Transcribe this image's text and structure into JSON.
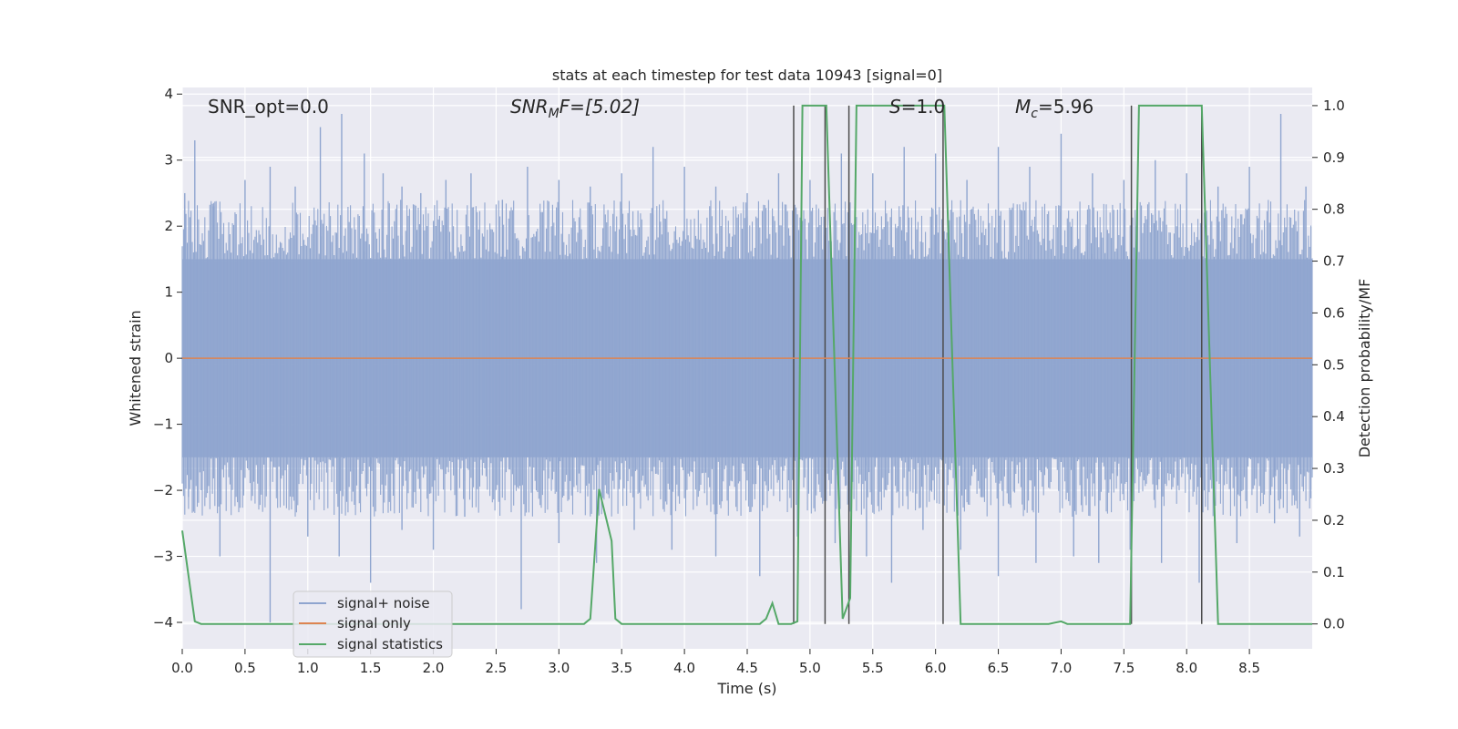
{
  "chart_data": {
    "type": "line",
    "title": "stats at each timestep for test data 10943 [signal=0]",
    "xlabel": "Time (s)",
    "ylabel": "Whitened strain",
    "ylabel_right": "Detection probability/MF",
    "xlim": [
      0.0,
      9.0
    ],
    "ylim": [
      -4.4,
      4.1
    ],
    "ylim_right": [
      -0.048,
      1.035
    ],
    "x_ticks": [
      "0.0",
      "0.5",
      "1.0",
      "1.5",
      "2.0",
      "2.5",
      "3.0",
      "3.5",
      "4.0",
      "4.5",
      "5.0",
      "5.5",
      "6.0",
      "6.5",
      "7.0",
      "7.5",
      "8.0",
      "8.5"
    ],
    "y_ticks": [
      "4",
      "3",
      "2",
      "1",
      "0",
      "−1",
      "−2",
      "−3",
      "−4"
    ],
    "y_ticks_right": [
      "1.0",
      "0.9",
      "0.8",
      "0.7",
      "0.6",
      "0.5",
      "0.4",
      "0.3",
      "0.2",
      "0.1",
      "0.0"
    ],
    "grid": true,
    "legend_position": "lower-left",
    "annotations": {
      "snr_opt": "SNR_opt=0.0",
      "snr_mf_main": "SNR",
      "snr_mf_sub": "M",
      "snr_mf_rest": "F=[5.02]",
      "s_main": "S",
      "s_rest": "=1.0",
      "mc_main": "M",
      "mc_sub": "c",
      "mc_rest": "=5.96"
    },
    "series": [
      {
        "name": "signal+ noise",
        "color": "#8fa5cf",
        "description": "whitened strain noise trace, approximately uniform band within ±1.5 with spikes up to about ±3.8",
        "band": [
          -1.5,
          1.5
        ],
        "peaks_up": [
          [
            0.02,
            2.5
          ],
          [
            0.1,
            3.3
          ],
          [
            0.25,
            2.3
          ],
          [
            0.5,
            2.7
          ],
          [
            0.7,
            2.9
          ],
          [
            0.9,
            2.6
          ],
          [
            1.1,
            3.5
          ],
          [
            1.27,
            3.7
          ],
          [
            1.45,
            3.1
          ],
          [
            1.6,
            2.8
          ],
          [
            1.75,
            2.6
          ],
          [
            1.9,
            2.5
          ],
          [
            2.1,
            2.7
          ],
          [
            2.3,
            2.8
          ],
          [
            2.55,
            2.4
          ],
          [
            2.75,
            2.9
          ],
          [
            3.0,
            2.7
          ],
          [
            3.25,
            2.6
          ],
          [
            3.5,
            2.8
          ],
          [
            3.75,
            3.2
          ],
          [
            4.0,
            2.9
          ],
          [
            4.25,
            2.6
          ],
          [
            4.5,
            2.5
          ],
          [
            4.75,
            2.8
          ],
          [
            5.0,
            2.7
          ],
          [
            5.25,
            3.1
          ],
          [
            5.5,
            2.8
          ],
          [
            5.75,
            3.2
          ],
          [
            6.0,
            3.1
          ],
          [
            6.25,
            2.7
          ],
          [
            6.5,
            3.2
          ],
          [
            6.75,
            2.9
          ],
          [
            7.0,
            3.4
          ],
          [
            7.25,
            2.8
          ],
          [
            7.5,
            2.7
          ],
          [
            7.75,
            3.0
          ],
          [
            8.0,
            2.8
          ],
          [
            8.25,
            2.6
          ],
          [
            8.5,
            2.9
          ],
          [
            8.75,
            3.7
          ],
          [
            8.95,
            2.6
          ]
        ],
        "peaks_down": [
          [
            0.05,
            -2.1
          ],
          [
            0.3,
            -3.0
          ],
          [
            0.7,
            -4.0
          ],
          [
            1.0,
            -2.7
          ],
          [
            1.25,
            -3.0
          ],
          [
            1.5,
            -3.4
          ],
          [
            1.75,
            -2.6
          ],
          [
            2.0,
            -2.9
          ],
          [
            2.25,
            -2.4
          ],
          [
            2.7,
            -3.8
          ],
          [
            3.0,
            -2.8
          ],
          [
            3.3,
            -3.1
          ],
          [
            3.6,
            -2.6
          ],
          [
            3.9,
            -2.9
          ],
          [
            4.25,
            -3.0
          ],
          [
            4.6,
            -3.3
          ],
          [
            4.9,
            -2.7
          ],
          [
            5.2,
            -2.8
          ],
          [
            5.45,
            -3.0
          ],
          [
            5.65,
            -3.4
          ],
          [
            5.9,
            -2.6
          ],
          [
            6.2,
            -2.9
          ],
          [
            6.5,
            -3.3
          ],
          [
            6.8,
            -3.1
          ],
          [
            7.1,
            -3.0
          ],
          [
            7.3,
            -3.1
          ],
          [
            7.55,
            -2.9
          ],
          [
            7.8,
            -3.1
          ],
          [
            8.1,
            -3.4
          ],
          [
            8.4,
            -2.8
          ],
          [
            8.7,
            -2.5
          ],
          [
            8.9,
            -2.7
          ]
        ]
      },
      {
        "name": "signal only",
        "color": "#dd8452",
        "x": [
          0.0,
          9.0
        ],
        "y": [
          0.0,
          0.0
        ]
      },
      {
        "name": "signal statistics",
        "color": "#55a868",
        "axis": "right",
        "x": [
          0.0,
          0.1,
          0.15,
          3.2,
          3.25,
          3.32,
          3.42,
          3.45,
          3.5,
          4.6,
          4.65,
          4.7,
          4.75,
          4.85,
          4.9,
          4.94,
          5.13,
          5.26,
          5.32,
          5.37,
          6.07,
          6.2,
          6.25,
          6.9,
          7.0,
          7.05,
          7.55,
          7.62,
          8.12,
          8.25,
          9.0
        ],
        "y": [
          0.18,
          0.005,
          0.0,
          0.0,
          0.01,
          0.26,
          0.16,
          0.01,
          0.0,
          0.0,
          0.01,
          0.04,
          0.0,
          0.0,
          0.005,
          1.0,
          1.0,
          0.01,
          0.05,
          1.0,
          1.0,
          0.0,
          0.0,
          0.0,
          0.005,
          0.0,
          0.0,
          1.0,
          1.0,
          0.0,
          0.0
        ]
      }
    ],
    "vertical_lines": {
      "color": "#4c4c4c",
      "x": [
        4.87,
        5.12,
        5.31,
        6.06,
        7.56,
        8.12
      ]
    }
  }
}
